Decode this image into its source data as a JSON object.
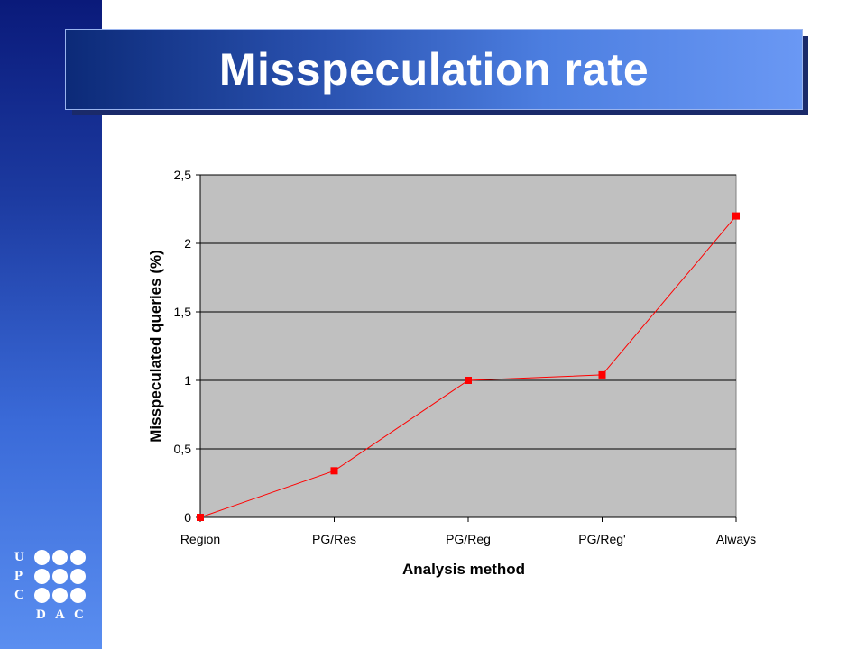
{
  "slide": {
    "title": "Misspeculation rate"
  },
  "logo": {
    "left_letters": [
      "U",
      "P",
      "C"
    ],
    "bottom_letters": [
      "D",
      "A",
      "C"
    ]
  },
  "colors": {
    "series": "#ff0000",
    "plot_background": "#c0c0c0",
    "sidebar": "#2a52c0"
  },
  "chart_data": {
    "type": "line",
    "categories": [
      "Region",
      "PG/Res",
      "PG/Reg",
      "PG/Reg'",
      "Always"
    ],
    "series": [
      {
        "values": [
          0.0,
          0.34,
          1.0,
          1.04,
          2.2
        ]
      }
    ],
    "xlabel": "Analysis method",
    "ylabel": "Misspeculated queries (%)",
    "ylim": [
      0,
      2.5
    ],
    "yticks": [
      0,
      0.5,
      1,
      1.5,
      2,
      2.5
    ],
    "ytick_labels": [
      "0",
      "0,5",
      "1",
      "1,5",
      "2",
      "2,5"
    ],
    "grid": true,
    "legend": "none"
  }
}
